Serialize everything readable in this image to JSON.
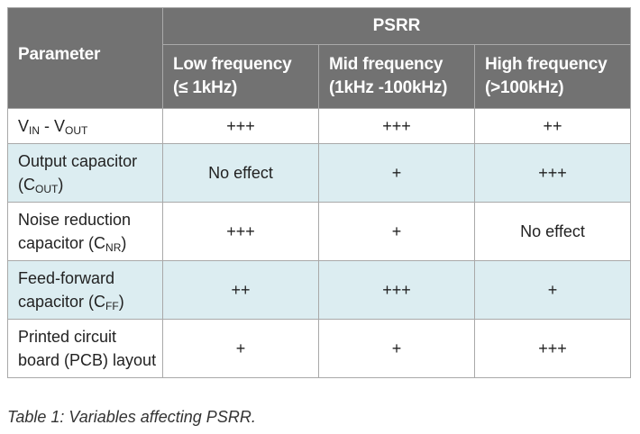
{
  "table": {
    "group_header": "PSRR",
    "columns": {
      "parameter": "Parameter",
      "low": {
        "line1": "Low frequency",
        "line2": "(≤ 1kHz)"
      },
      "mid": {
        "line1": "Mid frequency",
        "line2": "(1kHz -100kHz)"
      },
      "high": {
        "line1": "High frequency",
        "line2": "(>100kHz)"
      }
    },
    "rows": [
      {
        "param": {
          "a": "V",
          "a_sub": "IN",
          "b": " - V",
          "b_sub": "OUT"
        },
        "low": "+++",
        "mid": "+++",
        "high": "++"
      },
      {
        "param": {
          "line1": "Output capacitor",
          "line2_prefix": "(C",
          "line2_sub": "OUT",
          "line2_suffix": ")"
        },
        "low": "No effect",
        "mid": "+",
        "high": "+++"
      },
      {
        "param": {
          "line1": "Noise reduction",
          "line2_prefix": "capacitor (C",
          "line2_sub": "NR",
          "line2_suffix": ")"
        },
        "low": "+++",
        "mid": "+",
        "high": "No effect"
      },
      {
        "param": {
          "line1": "Feed-forward",
          "line2_prefix": "capacitor (C",
          "line2_sub": "FF",
          "line2_suffix": ")"
        },
        "low": "++",
        "mid": "+++",
        "high": "+"
      },
      {
        "param": {
          "line1": "Printed circuit",
          "line2": "board (PCB) layout"
        },
        "low": "+",
        "mid": "+",
        "high": "+++"
      }
    ]
  },
  "caption": "Table 1: Variables affecting PSRR.",
  "colors": {
    "header_bg": "#727272",
    "shaded_row_bg": "#dcedf1",
    "border": "#a9a9a9"
  }
}
